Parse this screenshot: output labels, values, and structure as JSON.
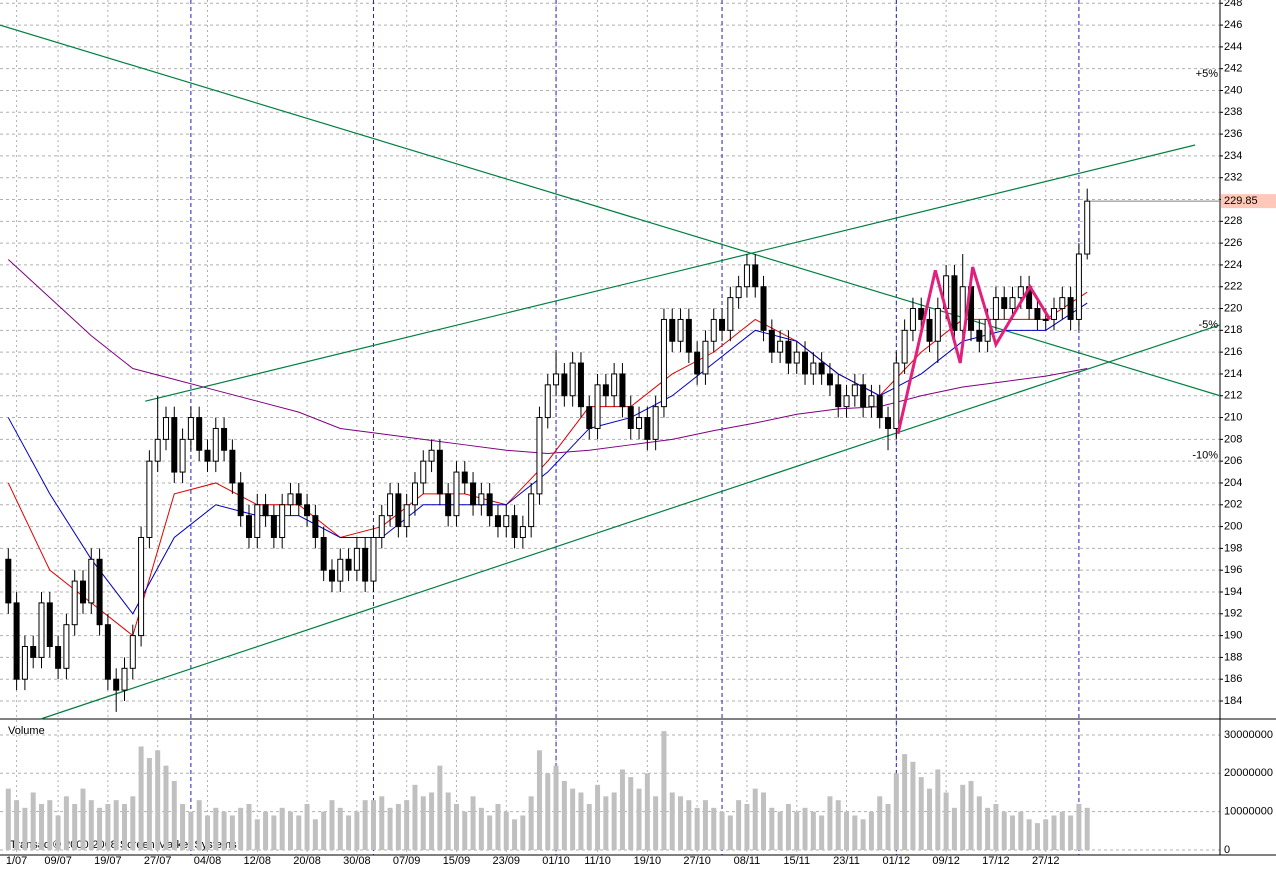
{
  "chart_data": {
    "type": "candlestick",
    "copyright": "Transaq © 2000-2008 Screen Market Systems",
    "xlim": [
      -1,
      146
    ],
    "ylim": [
      182.35,
      248.3
    ],
    "yticks": [
      184,
      186,
      188,
      190,
      192,
      194,
      196,
      198,
      200,
      202,
      204,
      206,
      208,
      210,
      212,
      214,
      216,
      218,
      220,
      222,
      224,
      226,
      228,
      230,
      232,
      234,
      236,
      238,
      240,
      242,
      244,
      246,
      248
    ],
    "xticks": [
      {
        "value": 1,
        "label": "1/07"
      },
      {
        "value": 6,
        "label": "09/07"
      },
      {
        "value": 12,
        "label": "19/07"
      },
      {
        "value": 18,
        "label": "27/07"
      },
      {
        "value": 24,
        "label": "04/08"
      },
      {
        "value": 30,
        "label": "12/08"
      },
      {
        "value": 36,
        "label": "20/08"
      },
      {
        "value": 42,
        "label": "30/08"
      },
      {
        "value": 48,
        "label": "07/09"
      },
      {
        "value": 54,
        "label": "15/09"
      },
      {
        "value": 60,
        "label": "23/09"
      },
      {
        "value": 66,
        "label": "01/10"
      },
      {
        "value": 71,
        "label": "11/10"
      },
      {
        "value": 77,
        "label": "19/10"
      },
      {
        "value": 83,
        "label": "27/10"
      },
      {
        "value": 89,
        "label": "08/11"
      },
      {
        "value": 95,
        "label": "15/11"
      },
      {
        "value": 101,
        "label": "23/11"
      },
      {
        "value": 107,
        "label": "01/12"
      },
      {
        "value": 113,
        "label": "09/12"
      },
      {
        "value": 119,
        "label": "17/12"
      },
      {
        "value": 125,
        "label": "27/12"
      }
    ],
    "month_lines": [
      22,
      44,
      66,
      86,
      107,
      129
    ],
    "up_color": "#ffffff",
    "down_color": "#000000",
    "candles": [
      [
        197,
        198,
        192,
        193
      ],
      [
        193,
        194,
        185,
        186
      ],
      [
        186,
        190,
        185,
        189
      ],
      [
        189,
        190,
        187,
        188
      ],
      [
        188,
        194,
        187,
        193
      ],
      [
        193,
        194,
        188,
        189
      ],
      [
        189,
        190,
        186,
        187
      ],
      [
        187,
        192,
        186,
        191
      ],
      [
        191,
        196,
        190,
        195
      ],
      [
        195,
        196,
        192,
        193
      ],
      [
        193,
        198,
        192,
        197
      ],
      [
        197,
        198,
        190,
        191
      ],
      [
        191,
        192,
        185,
        186
      ],
      [
        186,
        187,
        183,
        185
      ],
      [
        185,
        188,
        184,
        187
      ],
      [
        187,
        191,
        186,
        190
      ],
      [
        190,
        200,
        189,
        199
      ],
      [
        199,
        207,
        198,
        206
      ],
      [
        206,
        212,
        205,
        208
      ],
      [
        208,
        211,
        207,
        210
      ],
      [
        210,
        211,
        204,
        205
      ],
      [
        205,
        209,
        204,
        208
      ],
      [
        208,
        211,
        207,
        210
      ],
      [
        210,
        211,
        206,
        207
      ],
      [
        207,
        208,
        205,
        206
      ],
      [
        206,
        210,
        205,
        209
      ],
      [
        209,
        210,
        206,
        207
      ],
      [
        207,
        208,
        203,
        204
      ],
      [
        204,
        205,
        200,
        201
      ],
      [
        201,
        202,
        198,
        199
      ],
      [
        199,
        203,
        198,
        202
      ],
      [
        202,
        203,
        200,
        201
      ],
      [
        201,
        202,
        198,
        199
      ],
      [
        199,
        203,
        198,
        202
      ],
      [
        202,
        204,
        201,
        203
      ],
      [
        203,
        204,
        201,
        202
      ],
      [
        202,
        203,
        200,
        201
      ],
      [
        201,
        202,
        198,
        199
      ],
      [
        199,
        200,
        195,
        196
      ],
      [
        196,
        197,
        194,
        195
      ],
      [
        195,
        198,
        194,
        197
      ],
      [
        197,
        198,
        195,
        196
      ],
      [
        196,
        199,
        195,
        198
      ],
      [
        198,
        199,
        194,
        195
      ],
      [
        195,
        200,
        194,
        199
      ],
      [
        199,
        202,
        198,
        201
      ],
      [
        201,
        204,
        200,
        203
      ],
      [
        203,
        204,
        199,
        200
      ],
      [
        200,
        203,
        199,
        202
      ],
      [
        202,
        205,
        201,
        204
      ],
      [
        204,
        207,
        203,
        206
      ],
      [
        206,
        208,
        205,
        207
      ],
      [
        207,
        208,
        202,
        203
      ],
      [
        203,
        204,
        200,
        201
      ],
      [
        201,
        206,
        200,
        205
      ],
      [
        205,
        206,
        203,
        204
      ],
      [
        204,
        205,
        201,
        202
      ],
      [
        202,
        204,
        201,
        203
      ],
      [
        203,
        204,
        200,
        201
      ],
      [
        201,
        202,
        199,
        200
      ],
      [
        200,
        202,
        199,
        201
      ],
      [
        201,
        202,
        198,
        199
      ],
      [
        199,
        201,
        198,
        200
      ],
      [
        200,
        204,
        199,
        203
      ],
      [
        203,
        211,
        202,
        210
      ],
      [
        210,
        214,
        209,
        213
      ],
      [
        213,
        216,
        212,
        214
      ],
      [
        214,
        215,
        211,
        212
      ],
      [
        212,
        216,
        211,
        215
      ],
      [
        215,
        216,
        210,
        211
      ],
      [
        211,
        212,
        208,
        209
      ],
      [
        209,
        214,
        208,
        213
      ],
      [
        213,
        214,
        211,
        212
      ],
      [
        212,
        215,
        211,
        214
      ],
      [
        214,
        215,
        210,
        211
      ],
      [
        211,
        212,
        208,
        209
      ],
      [
        209,
        211,
        208,
        210
      ],
      [
        210,
        211,
        207,
        208
      ],
      [
        208,
        212,
        207,
        211
      ],
      [
        211,
        220,
        210,
        219
      ],
      [
        219,
        220,
        216,
        217
      ],
      [
        217,
        220,
        216,
        219
      ],
      [
        219,
        220,
        215,
        216
      ],
      [
        216,
        217,
        213,
        214
      ],
      [
        214,
        218,
        213,
        217
      ],
      [
        217,
        220,
        216,
        219
      ],
      [
        219,
        220,
        217,
        218
      ],
      [
        218,
        222,
        217,
        221
      ],
      [
        221,
        223,
        220,
        222
      ],
      [
        222,
        225,
        221,
        224
      ],
      [
        224,
        225,
        221,
        222
      ],
      [
        222,
        223,
        217,
        218
      ],
      [
        218,
        219,
        215,
        216
      ],
      [
        216,
        218,
        215,
        217
      ],
      [
        217,
        218,
        214,
        215
      ],
      [
        215,
        217,
        214,
        216
      ],
      [
        216,
        217,
        213,
        214
      ],
      [
        214,
        216,
        213,
        215
      ],
      [
        215,
        216,
        213,
        214
      ],
      [
        214,
        215,
        212,
        213
      ],
      [
        213,
        214,
        210,
        211
      ],
      [
        211,
        213,
        210,
        212
      ],
      [
        212,
        214,
        211,
        213
      ],
      [
        213,
        214,
        210,
        211
      ],
      [
        211,
        213,
        210,
        212
      ],
      [
        212,
        213,
        209,
        210
      ],
      [
        210,
        211,
        207,
        209
      ],
      [
        209,
        216,
        208,
        215
      ],
      [
        215,
        219,
        214,
        218
      ],
      [
        218,
        221,
        217,
        220
      ],
      [
        220,
        221,
        218,
        219
      ],
      [
        219,
        220,
        216,
        217
      ],
      [
        217,
        221,
        215,
        220
      ],
      [
        220,
        224,
        219,
        223
      ],
      [
        223,
        224,
        217,
        218
      ],
      [
        218,
        225,
        217,
        222
      ],
      [
        222,
        223,
        217,
        218
      ],
      [
        218,
        219,
        216,
        217
      ],
      [
        217,
        220,
        216,
        219
      ],
      [
        219,
        222,
        218,
        221
      ],
      [
        221,
        222,
        219,
        220
      ],
      [
        220,
        222,
        219,
        221
      ],
      [
        221,
        223,
        220,
        222
      ],
      [
        222,
        223,
        219,
        220
      ],
      [
        220,
        221,
        218,
        219
      ],
      [
        219,
        220,
        218,
        219
      ],
      [
        219,
        221,
        218,
        220
      ],
      [
        220,
        222,
        219,
        221
      ],
      [
        221,
        222,
        218,
        219
      ],
      [
        219,
        226,
        218,
        225
      ],
      [
        225,
        231,
        224.5,
        229.85
      ]
    ],
    "volume": {
      "label": "Volume",
      "color": "#c0c0c0",
      "ylim": [
        0,
        33900000
      ],
      "yticks": [
        0,
        10000000,
        20000000,
        30000000
      ],
      "values": [
        16000000,
        13000000,
        11000000,
        15000000,
        12000000,
        13000000,
        9000000,
        14000000,
        12000000,
        16000000,
        13000000,
        11000000,
        12000000,
        13000000,
        12000000,
        14000000,
        27000000,
        24000000,
        26000000,
        22000000,
        18000000,
        12000000,
        10000000,
        13000000,
        9000000,
        11000000,
        10000000,
        9000000,
        11000000,
        12000000,
        8000000,
        10000000,
        9000000,
        11000000,
        10000000,
        9000000,
        12000000,
        8000000,
        10000000,
        13000000,
        11000000,
        9000000,
        10000000,
        13000000,
        13000000,
        14000000,
        11000000,
        12000000,
        13000000,
        17000000,
        14000000,
        15000000,
        22000000,
        15000000,
        12000000,
        10000000,
        14000000,
        11000000,
        9000000,
        12000000,
        10000000,
        8000000,
        9000000,
        14000000,
        26000000,
        20000000,
        22000000,
        18000000,
        16000000,
        15000000,
        12000000,
        17000000,
        14000000,
        15000000,
        21000000,
        19000000,
        16000000,
        20000000,
        14000000,
        31000000,
        15000000,
        14000000,
        13000000,
        11000000,
        13000000,
        11000000,
        10000000,
        9000000,
        13000000,
        12000000,
        16000000,
        15000000,
        11000000,
        10000000,
        12000000,
        10000000,
        11000000,
        10000000,
        9000000,
        14000000,
        13000000,
        10000000,
        9000000,
        8000000,
        10000000,
        14000000,
        12000000,
        20000000,
        25000000,
        23000000,
        19000000,
        16000000,
        21000000,
        15000000,
        11000000,
        17000000,
        18000000,
        14000000,
        11000000,
        12000000,
        10000000,
        9000000,
        10000000,
        8000000,
        7000000,
        8000000,
        9000000,
        10000000,
        9000000,
        12000000,
        11000000
      ]
    },
    "ma_x": [
      0,
      5,
      10,
      15,
      20,
      25,
      30,
      35,
      40,
      45,
      50,
      55,
      60,
      65,
      70,
      75,
      80,
      85,
      90,
      95,
      100,
      105,
      110,
      115,
      120,
      125,
      130
    ],
    "moving_averages": [
      {
        "color": "#e00000",
        "values": [
          204,
          196,
          193,
          190,
          203,
          204,
          202,
          202,
          199,
          200,
          203,
          203,
          202,
          206,
          211,
          211,
          214,
          216,
          219,
          217,
          214,
          212,
          216,
          219,
          219,
          219,
          221.5
        ]
      },
      {
        "color": "#0000c0",
        "values": [
          210,
          203,
          197,
          192,
          199,
          202,
          201,
          201,
          199,
          199,
          202,
          202,
          202,
          205,
          209,
          210,
          212,
          215,
          218,
          217,
          214,
          212,
          214,
          217,
          218,
          218,
          220.5
        ]
      },
      {
        "color": "#800080",
        "values": [
          224.5,
          221,
          217.5,
          214.5,
          213.5,
          212.5,
          211.5,
          210.5,
          209,
          208.5,
          208,
          207.5,
          207,
          206.7,
          207,
          207.5,
          208,
          208.8,
          209.5,
          210.3,
          210.8,
          211,
          212,
          212.8,
          213.3,
          213.8,
          214.5
        ]
      }
    ],
    "trendlines": [
      {
        "color": "#008040",
        "points": [
          [
            -1,
            246
          ],
          [
            146,
            212
          ]
        ]
      },
      {
        "color": "#008040",
        "points": [
          [
            16.5,
            211.5
          ],
          [
            143,
            235
          ]
        ]
      },
      {
        "color": "#008040",
        "points": [
          [
            3.9,
            182.35
          ],
          [
            146,
            218.5
          ]
        ]
      }
    ],
    "zigzag": {
      "color": "#e0207a",
      "points": [
        [
          107.2,
          208.5
        ],
        [
          111.7,
          223.5
        ],
        [
          114.7,
          215
        ],
        [
          116.2,
          223.8
        ],
        [
          119,
          216.7
        ],
        [
          123.1,
          222
        ],
        [
          125.5,
          219
        ]
      ]
    },
    "levels": [
      {
        "label": "+5%",
        "value": 241.5,
        "color": "#008000"
      },
      {
        "label": "-5%",
        "value": 218.5,
        "color": "#c00000"
      },
      {
        "label": "-10%",
        "value": 206.5,
        "color": "#c00000"
      }
    ],
    "last_price": {
      "value": 229.85,
      "color": "#ffc8b8"
    }
  }
}
